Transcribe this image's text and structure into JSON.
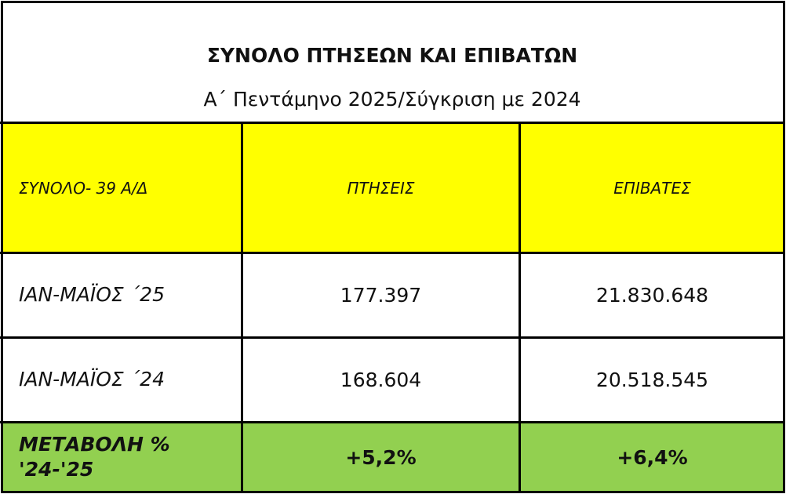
{
  "header": {
    "title": "ΣΥΝΟΛΟ ΠΤΗΣΕΩΝ ΚΑΙ ΕΠΙΒΑΤΩΝ",
    "subtitle": "Α΄ Πεντάμηνο 2025/Σύγκριση με 2024"
  },
  "table": {
    "columns": [
      "ΣΥΝΟΛΟ- 39 Α/Δ",
      "ΠΤΗΣΕΙΣ",
      "ΕΠΙΒΑΤΕΣ"
    ],
    "rows": [
      [
        "ΙΑΝ-ΜΑΪΟΣ ΄25",
        "177.397",
        "21.830.648"
      ],
      [
        "ΙΑΝ-ΜΑΪΟΣ ΄24",
        "168.604",
        "20.518.545"
      ],
      [
        "ΜΕΤΑΒΟΛΗ % '24-'25",
        "+5,2%",
        "+6,4%"
      ]
    ]
  }
}
